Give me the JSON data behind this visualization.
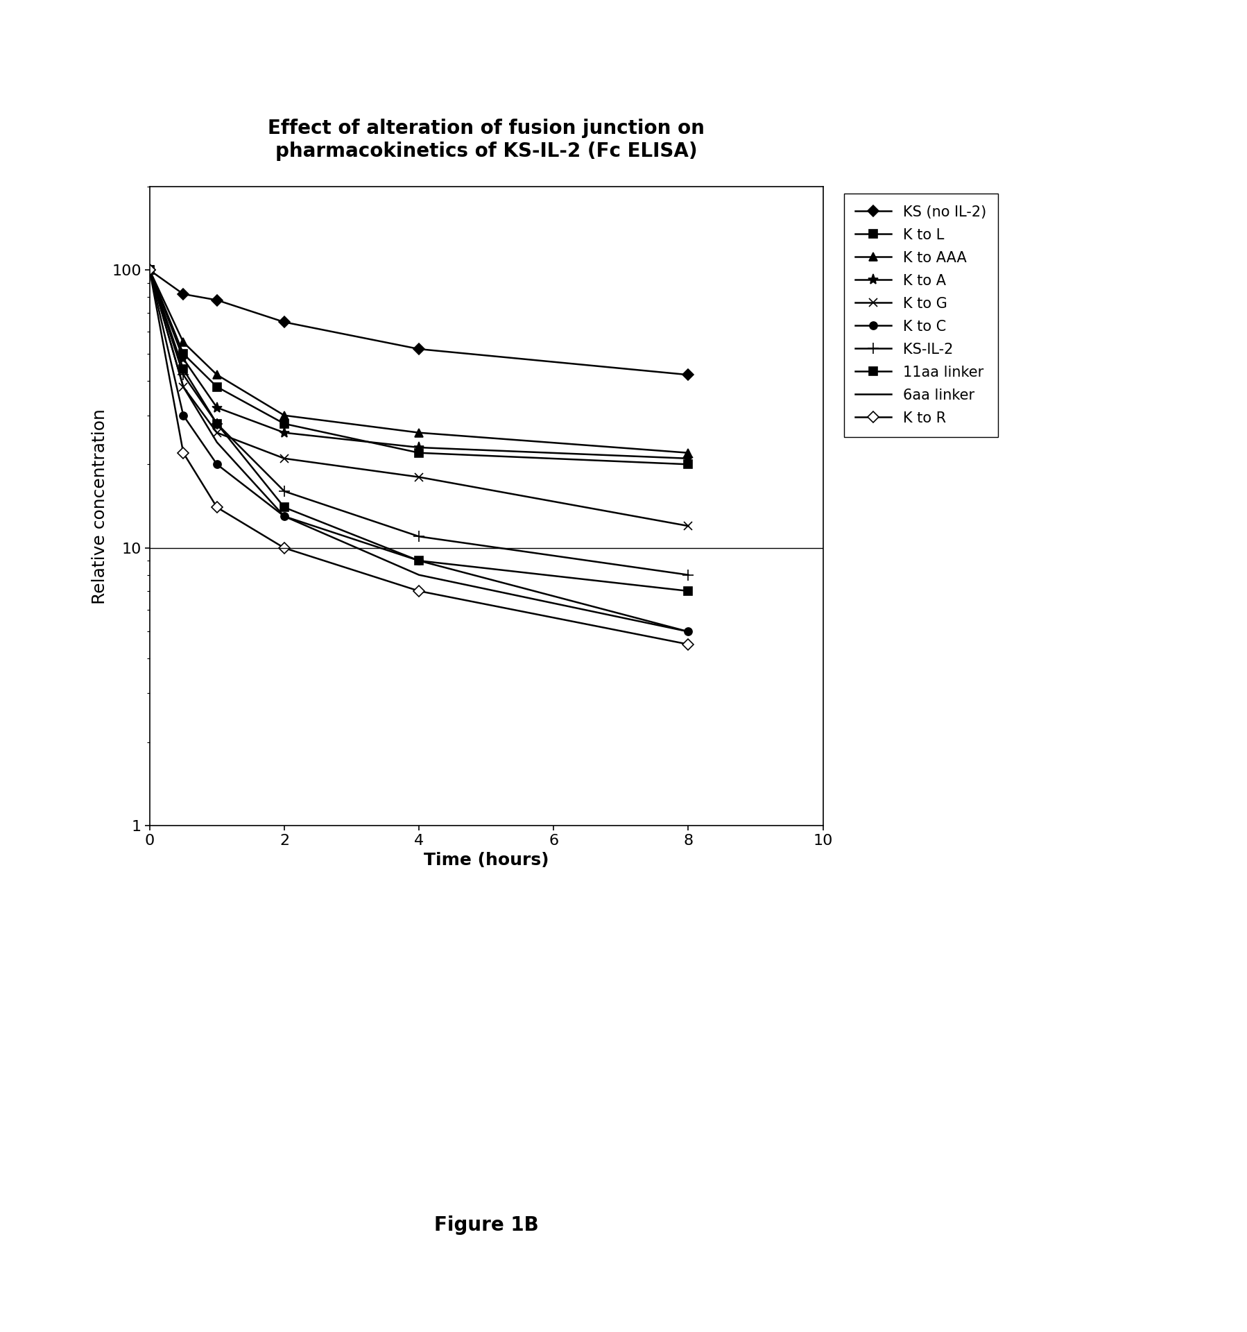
{
  "title": "Effect of alteration of fusion junction on\npharmacokinetics of KS-IL-2 (Fc ELISA)",
  "xlabel": "Time (hours)",
  "ylabel": "Relative concentration",
  "figure_caption": "Figure 1B",
  "xlim": [
    0,
    10
  ],
  "ylim": [
    1,
    200
  ],
  "series": [
    {
      "label": "KS (no IL-2)",
      "x": [
        0,
        0.5,
        1,
        2,
        4,
        8
      ],
      "y": [
        100,
        82,
        78,
        65,
        52,
        42
      ],
      "marker": "D",
      "markersize": 8,
      "markerfacecolor": "black",
      "color": "black",
      "linewidth": 1.8
    },
    {
      "label": "K to L",
      "x": [
        0,
        0.5,
        1,
        2,
        4,
        8
      ],
      "y": [
        100,
        50,
        38,
        28,
        22,
        20
      ],
      "marker": "s",
      "markersize": 8,
      "markerfacecolor": "black",
      "color": "black",
      "linewidth": 1.8
    },
    {
      "label": "K to AAA",
      "x": [
        0,
        0.5,
        1,
        2,
        4,
        8
      ],
      "y": [
        100,
        55,
        42,
        30,
        26,
        22
      ],
      "marker": "^",
      "markersize": 8,
      "markerfacecolor": "black",
      "color": "black",
      "linewidth": 1.8
    },
    {
      "label": "K to A",
      "x": [
        0,
        0.5,
        1,
        2,
        4,
        8
      ],
      "y": [
        100,
        48,
        32,
        26,
        23,
        21
      ],
      "marker": "*",
      "markersize": 11,
      "markerfacecolor": "black",
      "color": "black",
      "linewidth": 1.8
    },
    {
      "label": "K to G",
      "x": [
        0,
        0.5,
        1,
        2,
        4,
        8
      ],
      "y": [
        100,
        38,
        26,
        21,
        18,
        12
      ],
      "marker": "x",
      "markersize": 9,
      "markerfacecolor": "black",
      "color": "black",
      "linewidth": 1.8
    },
    {
      "label": "K to C",
      "x": [
        0,
        0.5,
        1,
        2,
        4,
        8
      ],
      "y": [
        100,
        30,
        20,
        13,
        9,
        5
      ],
      "marker": "o",
      "markersize": 8,
      "markerfacecolor": "black",
      "color": "black",
      "linewidth": 1.8
    },
    {
      "label": "KS-IL-2",
      "x": [
        0,
        0.5,
        1,
        2,
        4,
        8
      ],
      "y": [
        100,
        42,
        28,
        16,
        11,
        8
      ],
      "marker": "+",
      "markersize": 11,
      "markerfacecolor": "black",
      "color": "black",
      "linewidth": 1.8
    },
    {
      "label": "11aa linker",
      "x": [
        0,
        0.5,
        1,
        2,
        4,
        8
      ],
      "y": [
        100,
        44,
        28,
        14,
        9,
        7
      ],
      "marker": "s",
      "markersize": 8,
      "markerfacecolor": "black",
      "color": "black",
      "linewidth": 1.8
    },
    {
      "label": "6aa linker",
      "x": [
        0,
        0.5,
        1,
        2,
        4,
        8
      ],
      "y": [
        100,
        38,
        24,
        13,
        8,
        5
      ],
      "marker": "None",
      "markersize": 8,
      "markerfacecolor": "black",
      "color": "black",
      "linewidth": 1.8
    },
    {
      "label": "K to R",
      "x": [
        0,
        0.5,
        1,
        2,
        4,
        8
      ],
      "y": [
        100,
        22,
        14,
        10,
        7,
        4.5
      ],
      "marker": "D",
      "markersize": 8,
      "markerfacecolor": "white",
      "color": "black",
      "linewidth": 1.8
    }
  ],
  "title_fontsize": 20,
  "label_fontsize": 18,
  "tick_fontsize": 16,
  "legend_fontsize": 15,
  "background_color": "#ffffff"
}
